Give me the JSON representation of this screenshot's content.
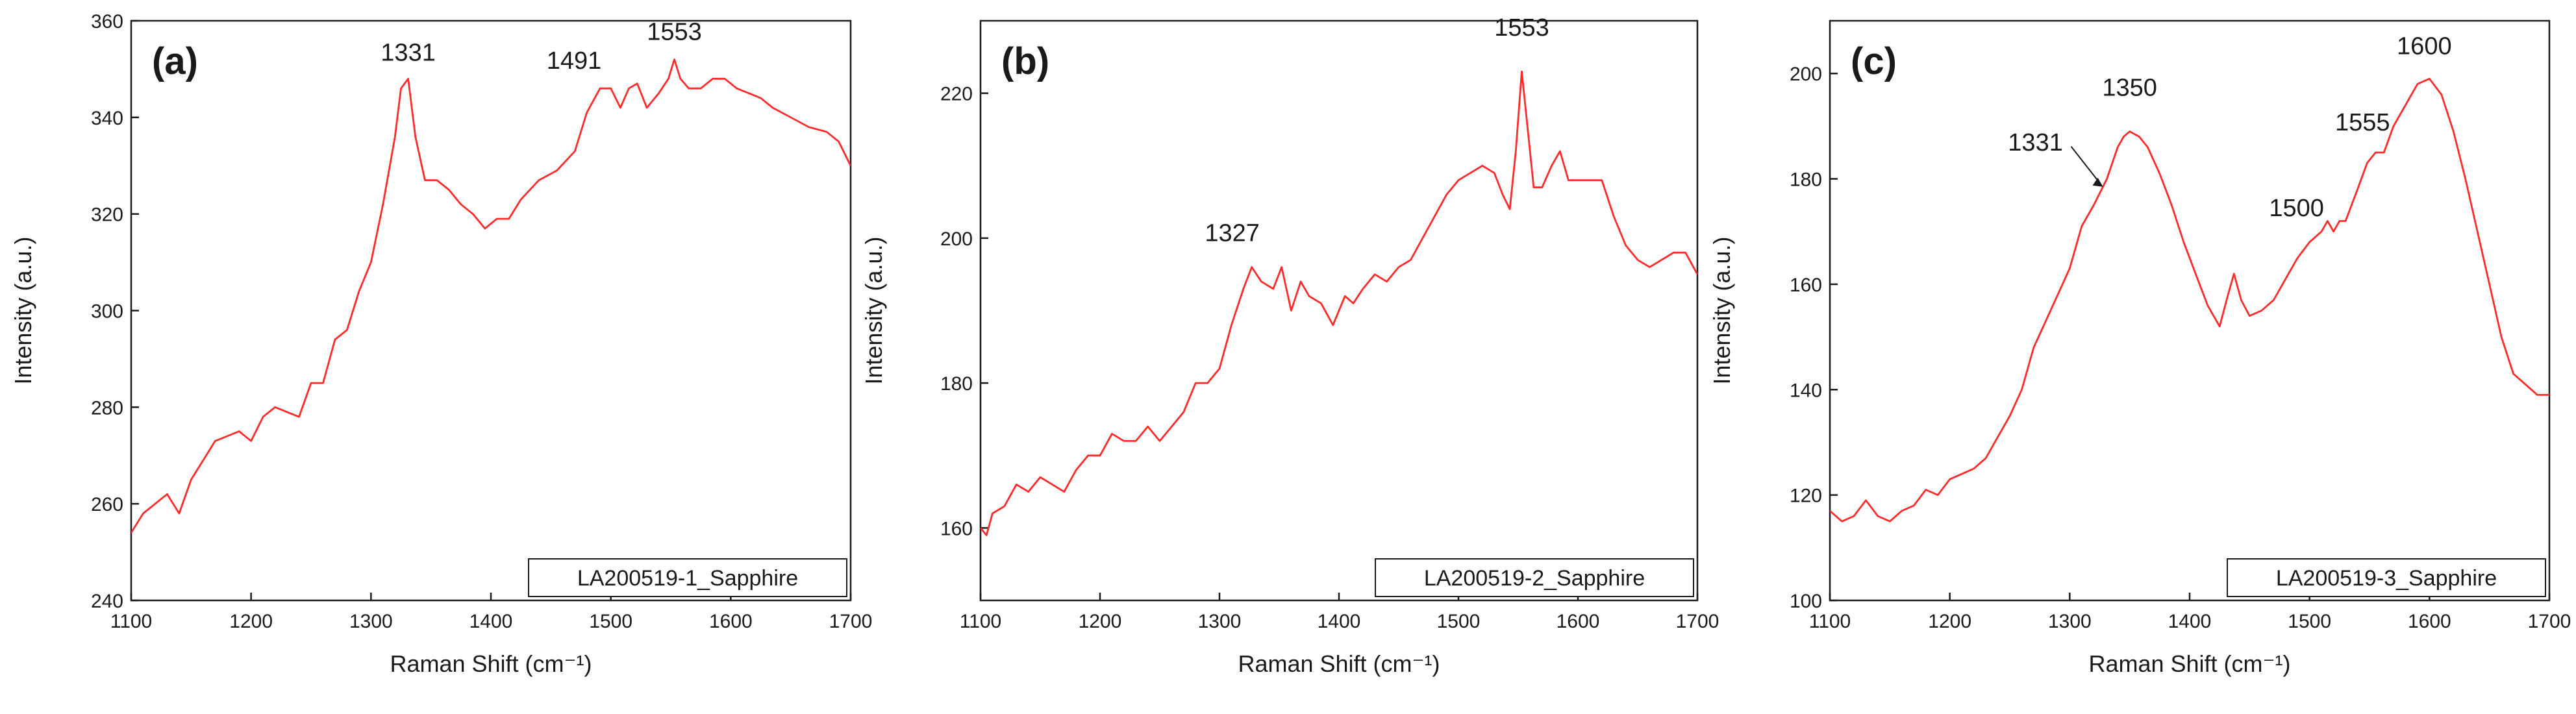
{
  "figure": {
    "description_labels": [
      "(a)",
      "(b)",
      "(c)"
    ]
  },
  "chart_data": [
    {
      "type": "line",
      "panel_label": "(a)",
      "xlabel": "Raman Shift (cm⁻¹)",
      "ylabel": "Intensity (a.u.)",
      "xlim": [
        1100,
        1700
      ],
      "ylim": [
        240,
        360
      ],
      "xticks": [
        1100,
        1200,
        1300,
        1400,
        1500,
        1600,
        1700
      ],
      "yticks": [
        240,
        260,
        280,
        300,
        320,
        340,
        360
      ],
      "legend": "LA200519-1_Sapphire",
      "legend_position": "bottom-right",
      "line_color": "#ff2b2b",
      "annotations": [
        {
          "text": "1331",
          "x": 1331,
          "y": 348
        },
        {
          "text": "1491",
          "x": 1491,
          "y": 346
        },
        {
          "text": "1553",
          "x": 1553,
          "y": 352
        }
      ],
      "series": [
        {
          "name": "LA200519-1_Sapphire",
          "x": [
            1100,
            1110,
            1120,
            1130,
            1140,
            1150,
            1160,
            1170,
            1180,
            1190,
            1200,
            1210,
            1220,
            1230,
            1240,
            1250,
            1260,
            1270,
            1280,
            1290,
            1300,
            1310,
            1320,
            1325,
            1331,
            1337,
            1345,
            1355,
            1365,
            1375,
            1385,
            1395,
            1405,
            1415,
            1425,
            1440,
            1455,
            1470,
            1480,
            1491,
            1500,
            1508,
            1515,
            1522,
            1530,
            1540,
            1548,
            1553,
            1558,
            1565,
            1575,
            1585,
            1595,
            1605,
            1615,
            1625,
            1635,
            1650,
            1665,
            1680,
            1690,
            1700
          ],
          "y": [
            254,
            258,
            260,
            262,
            258,
            265,
            269,
            273,
            274,
            275,
            273,
            278,
            280,
            279,
            278,
            285,
            285,
            294,
            296,
            304,
            310,
            322,
            336,
            346,
            348,
            336,
            327,
            327,
            325,
            322,
            320,
            317,
            319,
            319,
            323,
            327,
            329,
            333,
            341,
            346,
            346,
            342,
            346,
            347,
            342,
            345,
            348,
            352,
            348,
            346,
            346,
            348,
            348,
            346,
            345,
            344,
            342,
            340,
            338,
            337,
            335,
            330
          ]
        }
      ]
    },
    {
      "type": "line",
      "panel_label": "(b)",
      "xlabel": "Raman Shift (cm⁻¹)",
      "ylabel": "Intensity (a.u.)",
      "xlim": [
        1100,
        1700
      ],
      "ylim": [
        150,
        230
      ],
      "xticks": [
        1100,
        1200,
        1300,
        1400,
        1500,
        1600,
        1700
      ],
      "yticks": [
        160,
        180,
        200,
        220
      ],
      "legend": "LA200519-2_Sapphire",
      "legend_position": "bottom-right",
      "line_color": "#ff2b2b",
      "annotations": [
        {
          "text": "1327",
          "x": 1327,
          "y": 196
        },
        {
          "text": "1553",
          "x": 1553,
          "y": 223
        }
      ],
      "series": [
        {
          "name": "LA200519-2_Sapphire",
          "x": [
            1100,
            1105,
            1110,
            1120,
            1130,
            1140,
            1150,
            1160,
            1170,
            1180,
            1190,
            1200,
            1210,
            1220,
            1230,
            1240,
            1250,
            1260,
            1270,
            1280,
            1290,
            1300,
            1310,
            1320,
            1327,
            1335,
            1345,
            1352,
            1360,
            1368,
            1375,
            1385,
            1395,
            1405,
            1412,
            1420,
            1430,
            1440,
            1450,
            1460,
            1470,
            1480,
            1490,
            1500,
            1510,
            1520,
            1530,
            1537,
            1543,
            1548,
            1553,
            1558,
            1563,
            1570,
            1578,
            1585,
            1592,
            1600,
            1610,
            1620,
            1630,
            1640,
            1650,
            1660,
            1670,
            1680,
            1690,
            1700
          ],
          "y": [
            160,
            159,
            162,
            163,
            166,
            165,
            167,
            166,
            165,
            168,
            170,
            170,
            173,
            172,
            172,
            174,
            172,
            174,
            176,
            180,
            180,
            182,
            188,
            193,
            196,
            194,
            193,
            196,
            190,
            194,
            192,
            191,
            188,
            192,
            191,
            193,
            195,
            194,
            196,
            197,
            200,
            203,
            206,
            208,
            209,
            210,
            209,
            206,
            204,
            212,
            223,
            215,
            207,
            207,
            210,
            212,
            208,
            208,
            208,
            208,
            203,
            199,
            197,
            196,
            197,
            198,
            198,
            195
          ]
        }
      ]
    },
    {
      "type": "line",
      "panel_label": "(c)",
      "xlabel": "Raman Shift (cm⁻¹)",
      "ylabel": "Intensity (a.u.)",
      "xlim": [
        1100,
        1700
      ],
      "ylim": [
        100,
        210
      ],
      "xticks": [
        1100,
        1200,
        1300,
        1400,
        1500,
        1600,
        1700
      ],
      "yticks": [
        100,
        120,
        140,
        160,
        180,
        200
      ],
      "legend": "LA200519-3_Sapphire",
      "legend_position": "bottom-right",
      "line_color": "#ff2b2b",
      "annotations": [
        {
          "text": "1331",
          "x": 1331,
          "y": 178,
          "arrow": true
        },
        {
          "text": "1350",
          "x": 1350,
          "y": 189
        },
        {
          "text": "1500",
          "x": 1500,
          "y": 168
        },
        {
          "text": "1555",
          "x": 1555,
          "y": 183
        },
        {
          "text": "1600",
          "x": 1600,
          "y": 199
        }
      ],
      "series": [
        {
          "name": "LA200519-3_Sapphire",
          "x": [
            1100,
            1110,
            1120,
            1130,
            1140,
            1150,
            1160,
            1170,
            1180,
            1190,
            1200,
            1210,
            1220,
            1230,
            1240,
            1250,
            1260,
            1270,
            1280,
            1290,
            1300,
            1310,
            1320,
            1331,
            1340,
            1345,
            1350,
            1358,
            1365,
            1375,
            1385,
            1395,
            1405,
            1415,
            1425,
            1432,
            1437,
            1443,
            1450,
            1460,
            1470,
            1480,
            1490,
            1500,
            1510,
            1515,
            1520,
            1525,
            1530,
            1540,
            1548,
            1555,
            1562,
            1570,
            1580,
            1590,
            1600,
            1610,
            1620,
            1630,
            1640,
            1650,
            1660,
            1670,
            1680,
            1690,
            1700
          ],
          "y": [
            117,
            115,
            116,
            119,
            116,
            115,
            117,
            118,
            121,
            120,
            123,
            124,
            125,
            127,
            131,
            135,
            140,
            148,
            153,
            158,
            163,
            171,
            175,
            180,
            186,
            188,
            189,
            188,
            186,
            181,
            175,
            168,
            162,
            156,
            152,
            158,
            162,
            157,
            154,
            155,
            157,
            161,
            165,
            168,
            170,
            172,
            170,
            172,
            172,
            178,
            183,
            185,
            185,
            190,
            194,
            198,
            199,
            196,
            189,
            180,
            170,
            160,
            150,
            143,
            141,
            139,
            139
          ]
        }
      ]
    }
  ]
}
